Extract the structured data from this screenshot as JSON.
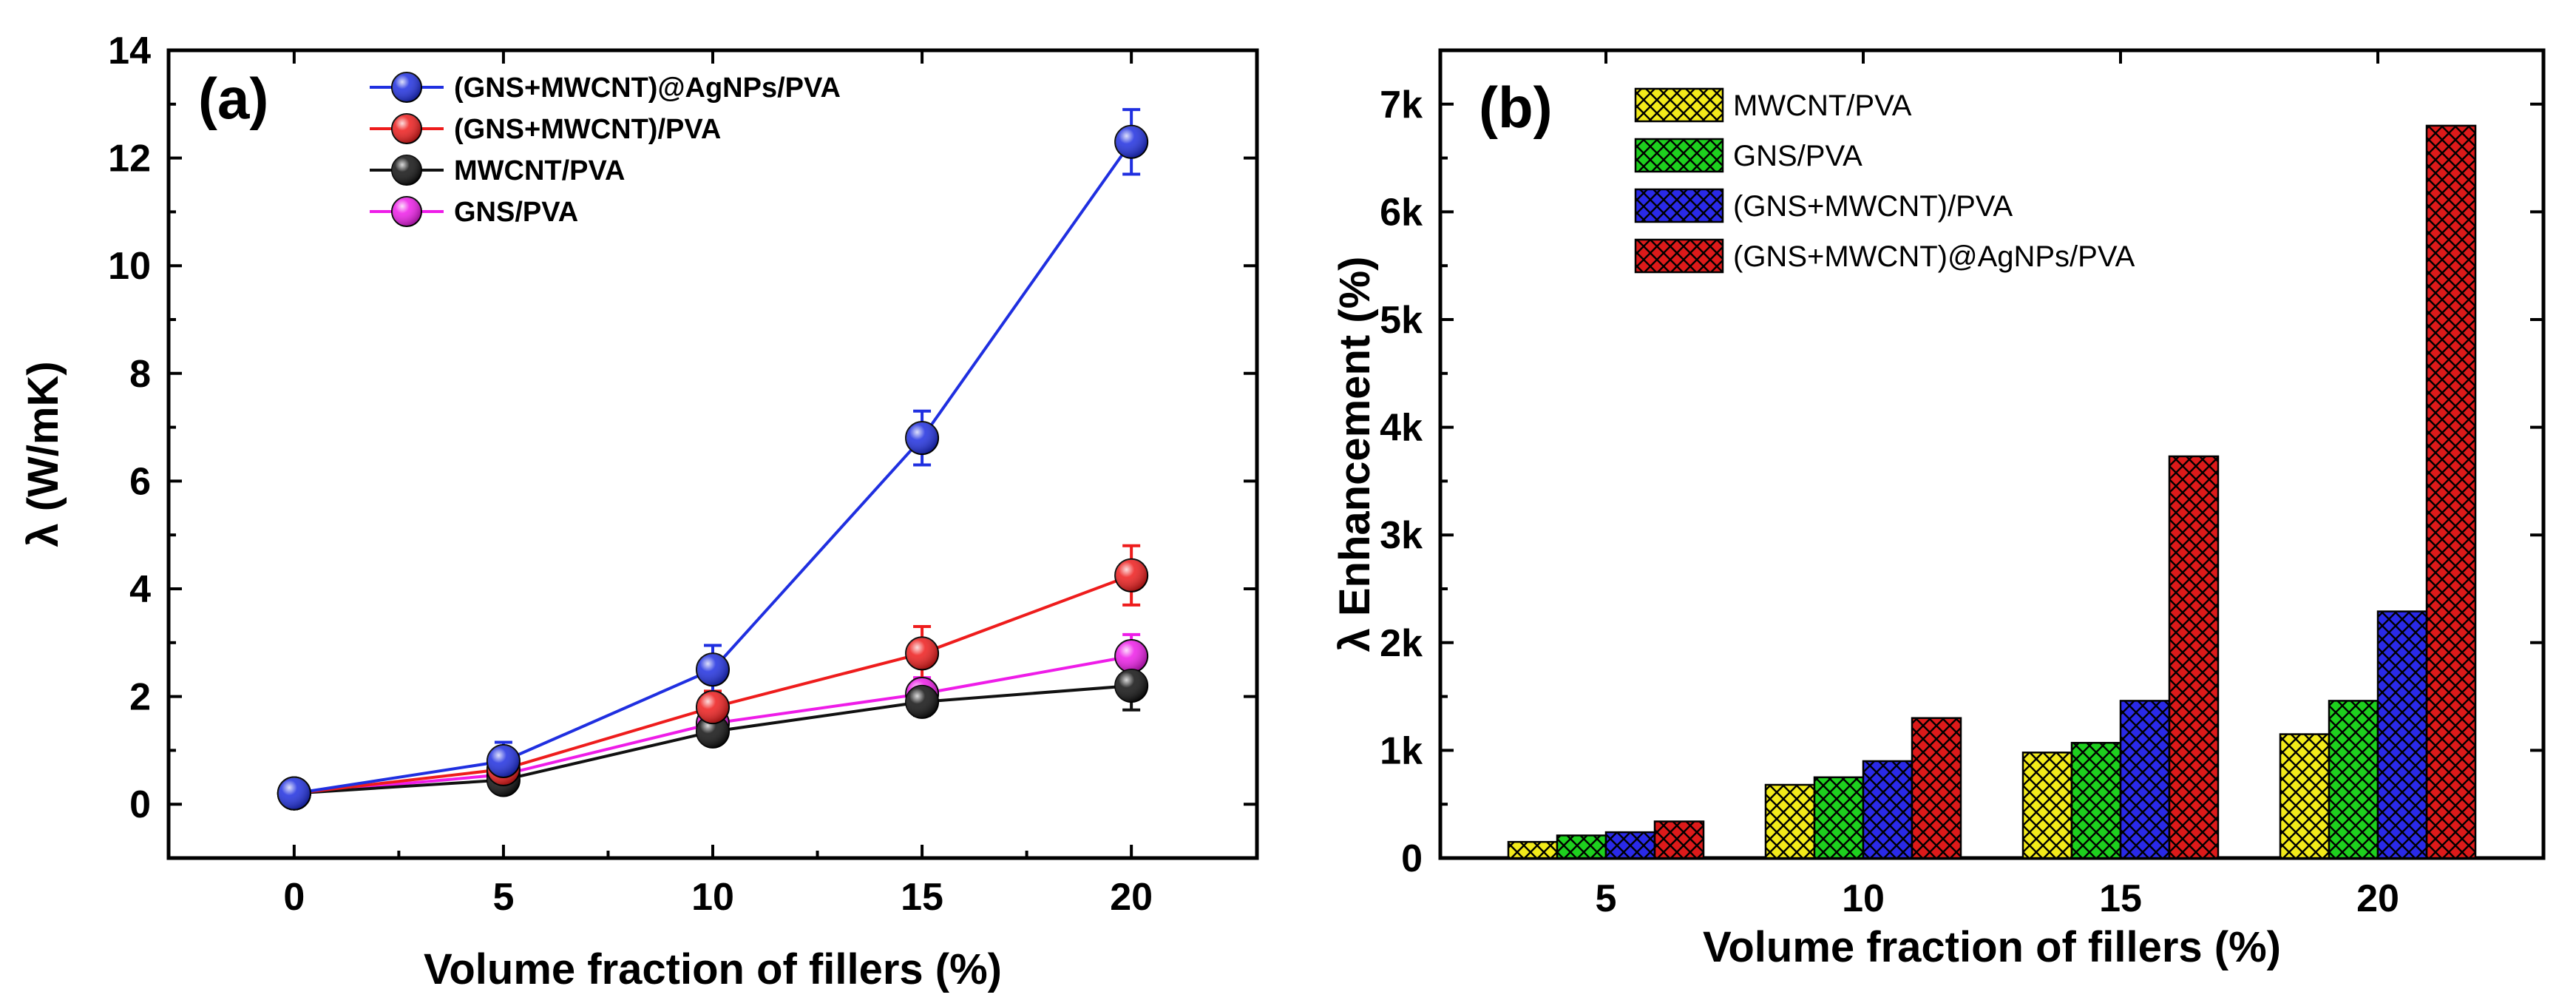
{
  "chart_data": [
    {
      "type": "line",
      "panel_label": "(a)",
      "title": "",
      "xlabel": "Volume fraction of fillers (%)",
      "ylabel": "λ (W/mK)",
      "xlim": [
        -3,
        23
      ],
      "ylim": [
        -1,
        14
      ],
      "xticks": [
        0,
        5,
        10,
        15,
        20
      ],
      "yticks": [
        0,
        2,
        4,
        6,
        8,
        10,
        12,
        14
      ],
      "x": [
        0,
        5,
        10,
        15,
        20
      ],
      "legend_position": "top-left",
      "series": [
        {
          "name": "(GNS+MWCNT)@AgNPs/PVA",
          "color": "#1f2fe0",
          "values": [
            0.2,
            0.8,
            2.5,
            6.8,
            12.3
          ],
          "errors": [
            0.1,
            0.35,
            0.45,
            0.5,
            0.6
          ]
        },
        {
          "name": "(GNS+MWCNT)/PVA",
          "color": "#ee1c1c",
          "values": [
            0.2,
            0.65,
            1.8,
            2.8,
            4.25
          ],
          "errors": [
            0.1,
            0.25,
            0.3,
            0.5,
            0.55
          ]
        },
        {
          "name": "MWCNT/PVA",
          "color": "#111111",
          "values": [
            0.2,
            0.45,
            1.35,
            1.9,
            2.2
          ],
          "errors": [
            0.1,
            0.15,
            0.2,
            0.25,
            0.45
          ]
        },
        {
          "name": "GNS/PVA",
          "color": "#ee1ce8",
          "values": [
            0.2,
            0.55,
            1.5,
            2.05,
            2.75
          ],
          "errors": [
            0.1,
            0.2,
            0.25,
            0.3,
            0.4
          ]
        }
      ]
    },
    {
      "type": "bar",
      "panel_label": "(b)",
      "title": "",
      "xlabel": "Volume fraction of fillers (%)",
      "ylabel": "λ Enhancement (%)",
      "ylim": [
        0,
        7500
      ],
      "yticks": [
        0,
        1000,
        2000,
        3000,
        4000,
        5000,
        6000,
        7000
      ],
      "ytick_labels": [
        "0",
        "1k",
        "2k",
        "3k",
        "4k",
        "5k",
        "6k",
        "7k"
      ],
      "categories": [
        "5",
        "10",
        "15",
        "20"
      ],
      "legend_position": "top-left",
      "series": [
        {
          "name": "MWCNT/PVA",
          "color": "#f2ea1a",
          "values": [
            150,
            680,
            980,
            1150
          ]
        },
        {
          "name": "GNS/PVA",
          "color": "#1ed01e",
          "values": [
            210,
            750,
            1070,
            1460
          ]
        },
        {
          "name": "(GNS+MWCNT)/PVA",
          "color": "#2a2ae8",
          "values": [
            240,
            900,
            1460,
            2290
          ]
        },
        {
          "name": "(GNS+MWCNT)@AgNPs/PVA",
          "color": "#dd1a1a",
          "values": [
            340,
            1300,
            3730,
            6800
          ]
        }
      ]
    }
  ]
}
